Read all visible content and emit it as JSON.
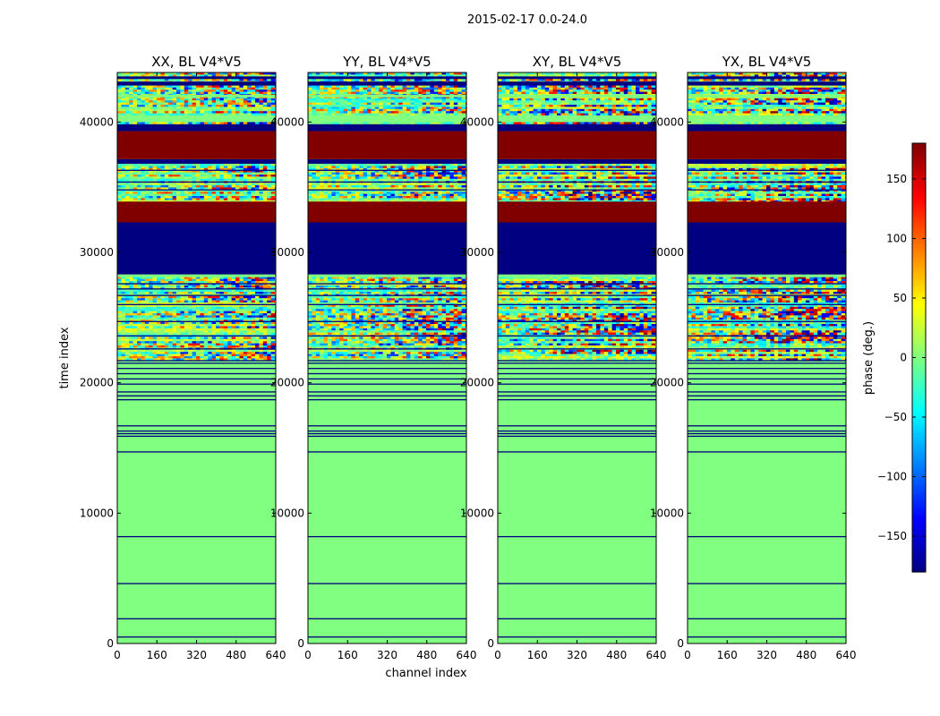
{
  "figure_title": "2015-02-17 0.0-24.0",
  "chart_data": {
    "type": "heatmap",
    "ylabel": "time index",
    "xlabel": "channel index",
    "xlim": [
      0,
      640
    ],
    "ylim": [
      0,
      43800
    ],
    "x_ticks": [
      0,
      160,
      320,
      480,
      640
    ],
    "y_ticks": [
      0,
      10000,
      20000,
      30000,
      40000
    ],
    "panels": [
      {
        "title": "XX, BL V4*V5",
        "noise_scale": 1.0,
        "seed": 11
      },
      {
        "title": "YY, BL V4*V5",
        "noise_scale": 1.0,
        "seed": 23
      },
      {
        "title": "XY, BL V4*V5",
        "noise_scale": 1.4,
        "seed": 37
      },
      {
        "title": "YX, BL V4*V5",
        "noise_scale": 1.4,
        "seed": 51
      }
    ],
    "colorbar": {
      "label": "phase (deg.)",
      "colormap": "jet",
      "range": [
        -180,
        180
      ],
      "ticks": [
        -150,
        -100,
        -50,
        0,
        50,
        100,
        150
      ],
      "tick_labels": [
        "−150",
        "−100",
        "−50",
        "0",
        "50",
        "100",
        "150"
      ]
    },
    "default_phase": 0,
    "blocks": [
      {
        "t0": 32300,
        "t1": 36800,
        "kind": "noise",
        "phase": 0
      },
      {
        "t0": 32300,
        "t1": 33900,
        "kind": "solid",
        "phase": 180
      },
      {
        "t0": 36800,
        "t1": 37150,
        "kind": "solid",
        "phase": -180
      },
      {
        "t0": 37150,
        "t1": 39300,
        "kind": "solid",
        "phase": 180
      },
      {
        "t0": 39300,
        "t1": 40000,
        "kind": "solid",
        "phase": -180
      },
      {
        "t0": 40000,
        "t1": 43800,
        "kind": "noise",
        "phase": 0
      },
      {
        "t0": 40000,
        "t1": 40500,
        "kind": "solid",
        "phase": 0
      },
      {
        "t0": 41900,
        "t1": 42100,
        "kind": "solid",
        "phase": 0
      },
      {
        "t0": 42800,
        "t1": 43100,
        "kind": "solid",
        "phase": -180
      },
      {
        "t0": 43300,
        "t1": 43500,
        "kind": "solid",
        "phase": -180
      },
      {
        "t0": 28300,
        "t1": 32300,
        "kind": "solid",
        "phase": -180
      },
      {
        "t0": 21800,
        "t1": 28300,
        "kind": "noise",
        "phase": 0
      },
      {
        "t0": 28100,
        "t1": 28300,
        "kind": "solid",
        "phase": 0
      }
    ],
    "lines": [
      {
        "t": 500
      },
      {
        "t": 1900
      },
      {
        "t": 4600
      },
      {
        "t": 8200
      },
      {
        "t": 14700
      },
      {
        "t": 15900
      },
      {
        "t": 16100
      },
      {
        "t": 16300
      },
      {
        "t": 16700
      },
      {
        "t": 18700
      },
      {
        "t": 19000
      },
      {
        "t": 19300
      },
      {
        "t": 19900
      },
      {
        "t": 20300
      },
      {
        "t": 20700
      },
      {
        "t": 21100
      },
      {
        "t": 21500
      },
      {
        "t": 21700
      },
      {
        "t": 22600
      },
      {
        "t": 23600
      },
      {
        "t": 24700
      },
      {
        "t": 26000
      },
      {
        "t": 26700
      },
      {
        "t": 27200
      },
      {
        "t": 27600
      },
      {
        "t": 28500
      },
      {
        "t": 30300
      },
      {
        "t": 34800
      },
      {
        "t": 35400
      },
      {
        "t": 36300
      }
    ]
  }
}
